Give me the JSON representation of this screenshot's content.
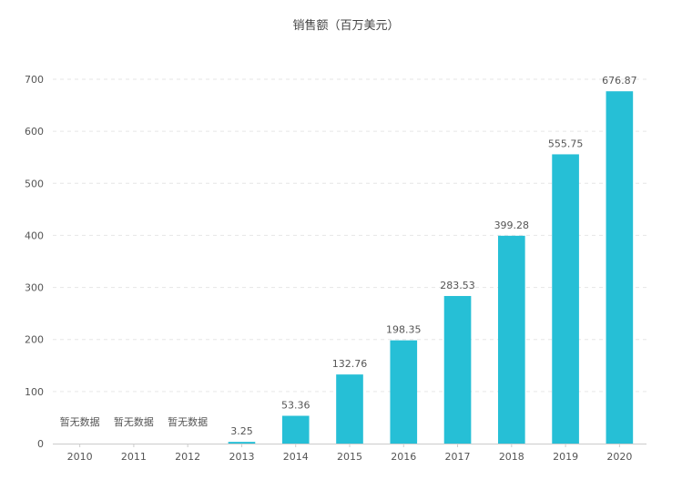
{
  "chart_data": {
    "type": "bar",
    "title": "销售额（百万美元）",
    "xlabel": "",
    "ylabel": "",
    "categories": [
      "2010",
      "2011",
      "2012",
      "2013",
      "2014",
      "2015",
      "2016",
      "2017",
      "2018",
      "2019",
      "2020"
    ],
    "values": [
      null,
      null,
      null,
      3.25,
      53.36,
      132.76,
      198.35,
      283.53,
      399.28,
      555.75,
      676.87
    ],
    "data_labels": [
      "暂无数据",
      "暂无数据",
      "暂无数据",
      "3.25",
      "53.36",
      "132.76",
      "198.35",
      "283.53",
      "399.28",
      "555.75",
      "676.87"
    ],
    "ylim": [
      0,
      700
    ],
    "yticks": [
      0,
      100,
      200,
      300,
      400,
      500,
      600,
      700
    ],
    "grid": true,
    "bar_color": "#26bfd6"
  }
}
